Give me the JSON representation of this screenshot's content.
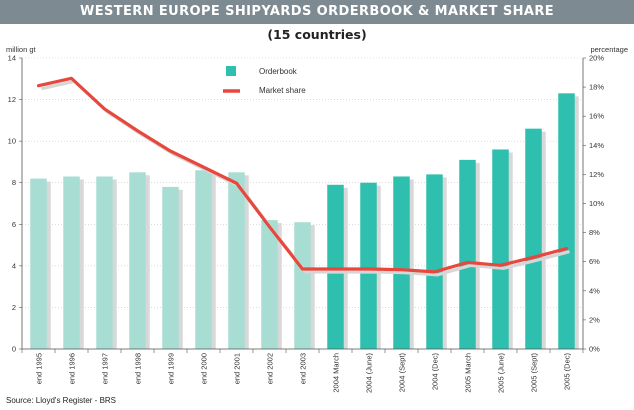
{
  "title": "WESTERN EUROPE SHIPYARDS ORDERBOOK & MARKET SHARE",
  "subtitle": "(15 countries)",
  "source": "Source: Lloyd's Register - BRS",
  "colors": {
    "title_bar": "#7d8a91",
    "bar_light": "#a8ddd3",
    "bar_dark": "#2fbfae",
    "bar_shadow": "#d8d8d8",
    "line": "#e8473d",
    "line_shadow": "#d6d6d6"
  },
  "chart_data": {
    "type": "bar",
    "categories": [
      "end 1995",
      "end 1996",
      "end 1997",
      "end 1998",
      "end 1999",
      "end 2000",
      "end 2001",
      "end 2002",
      "end 2003",
      "2004 March",
      "2004 (June)",
      "2004 (Sept)",
      "2004 (Dec)",
      "2005 March",
      "2005 (June)",
      "2005 (Sept)",
      "2005 (Dec)"
    ],
    "ylabel": "million gt",
    "y2label": "percentage",
    "ylim": [
      0,
      14
    ],
    "y2lim": [
      0,
      20
    ],
    "yticks": [
      "0",
      "2",
      "4",
      "6",
      "8",
      "10",
      "12",
      "14"
    ],
    "y2ticks": [
      "0%",
      "2%",
      "4%",
      "6%",
      "8%",
      "10%",
      "12%",
      "14%",
      "16%",
      "18%",
      "20%"
    ],
    "grid": true,
    "legend_position": "top-center",
    "series": [
      {
        "name": "Orderbook",
        "kind": "bar",
        "axis": "left",
        "values": [
          8.2,
          8.3,
          8.3,
          8.5,
          7.8,
          8.6,
          8.5,
          6.2,
          6.1,
          7.9,
          8.0,
          8.3,
          8.4,
          9.1,
          9.6,
          10.6,
          12.3
        ]
      },
      {
        "name": "Market share",
        "kind": "line",
        "axis": "right",
        "values": [
          18.1,
          18.6,
          16.5,
          15.0,
          13.6,
          12.5,
          11.4,
          8.4,
          5.5,
          5.5,
          5.5,
          5.45,
          5.3,
          5.95,
          5.75,
          6.3,
          6.9
        ]
      }
    ]
  }
}
